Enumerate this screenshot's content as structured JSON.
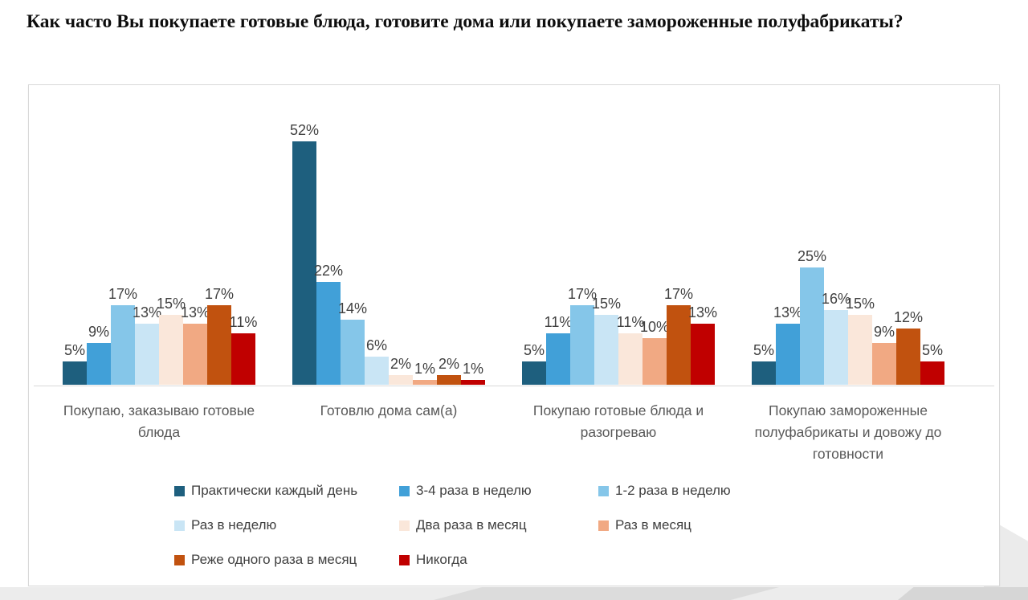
{
  "title": "Как часто Вы покупаете готовые блюда, готовите дома или покупаете замороженные полуфабрикаты?",
  "chart_data": {
    "type": "bar",
    "title": "Как часто Вы покупаете готовые блюда, готовите дома или покупаете замороженные полуфабрикаты?",
    "categories": [
      "Покупаю, заказываю готовые блюда",
      "Готовлю дома сам(а)",
      "Покупаю готовые блюда и разогреваю",
      "Покупаю замороженные полуфабрикаты и довожу до готовности"
    ],
    "series": [
      {
        "name": "Практически каждый день",
        "color": "#1E5F7E",
        "values": [
          5,
          52,
          5,
          5
        ]
      },
      {
        "name": "3-4 раза в неделю",
        "color": "#41A0D8",
        "values": [
          9,
          22,
          11,
          13
        ]
      },
      {
        "name": "1-2 раза в неделю",
        "color": "#85C6E9",
        "values": [
          17,
          14,
          17,
          25
        ]
      },
      {
        "name": "Раз в неделю",
        "color": "#C9E5F5",
        "values": [
          13,
          6,
          15,
          16
        ]
      },
      {
        "name": "Два раза в месяц",
        "color": "#FAE7DA",
        "values": [
          15,
          2,
          11,
          15
        ]
      },
      {
        "name": "Раз в месяц",
        "color": "#F1A983",
        "values": [
          13,
          1,
          10,
          9
        ]
      },
      {
        "name": "Реже одного раза в месяц",
        "color": "#C1520F",
        "values": [
          17,
          2,
          17,
          12
        ]
      },
      {
        "name": "Никогда",
        "color": "#C00000",
        "values": [
          11,
          1,
          13,
          5
        ]
      }
    ],
    "value_suffix": "%",
    "data_labels": true,
    "ylim": [
      0,
      55
    ],
    "grid": false,
    "y_axis_visible": false,
    "legend_position": "bottom",
    "axis_line_color": "#d9d9d9",
    "label_color": "#404040",
    "category_label_color": "#595959"
  }
}
